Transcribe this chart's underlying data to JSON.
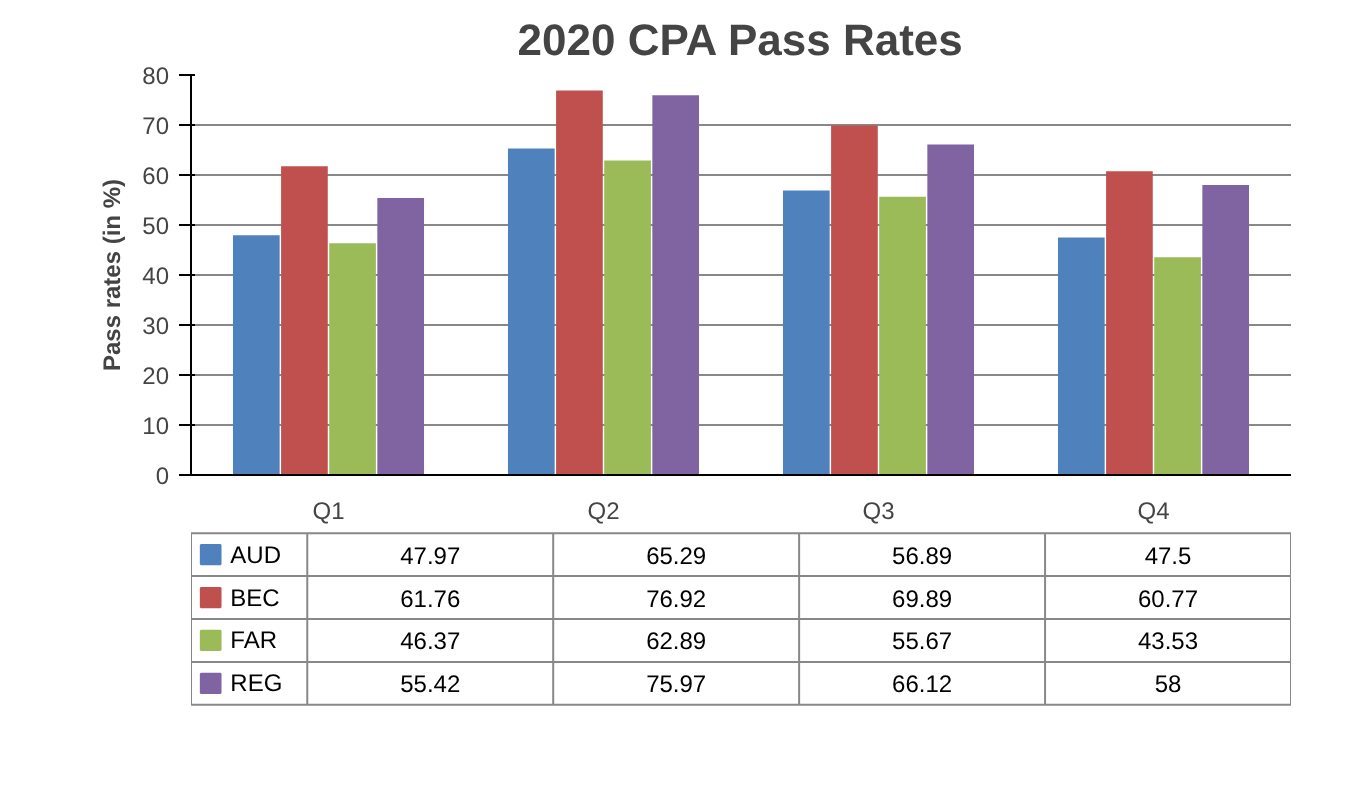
{
  "chart_data": {
    "type": "bar",
    "title": "2020 CPA Pass Rates",
    "ylabel": "Pass rates (in %)",
    "categories": [
      "Q1",
      "Q2",
      "Q3",
      "Q4"
    ],
    "series": [
      {
        "name": "AUD",
        "color": "#4f81bd",
        "values": [
          47.97,
          65.29,
          56.89,
          47.5
        ]
      },
      {
        "name": "BEC",
        "color": "#c0504d",
        "values": [
          61.76,
          76.92,
          69.89,
          60.77
        ]
      },
      {
        "name": "FAR",
        "color": "#9bbb59",
        "values": [
          46.37,
          62.89,
          55.67,
          43.53
        ]
      },
      {
        "name": "REG",
        "color": "#8064a2",
        "values": [
          55.42,
          75.97,
          66.12,
          58
        ]
      }
    ],
    "ylim": [
      0,
      80
    ],
    "yticks": [
      0,
      10,
      20,
      30,
      40,
      50,
      60,
      70,
      80
    ],
    "grid": "y",
    "legend": "bottom",
    "data_labels": true
  }
}
